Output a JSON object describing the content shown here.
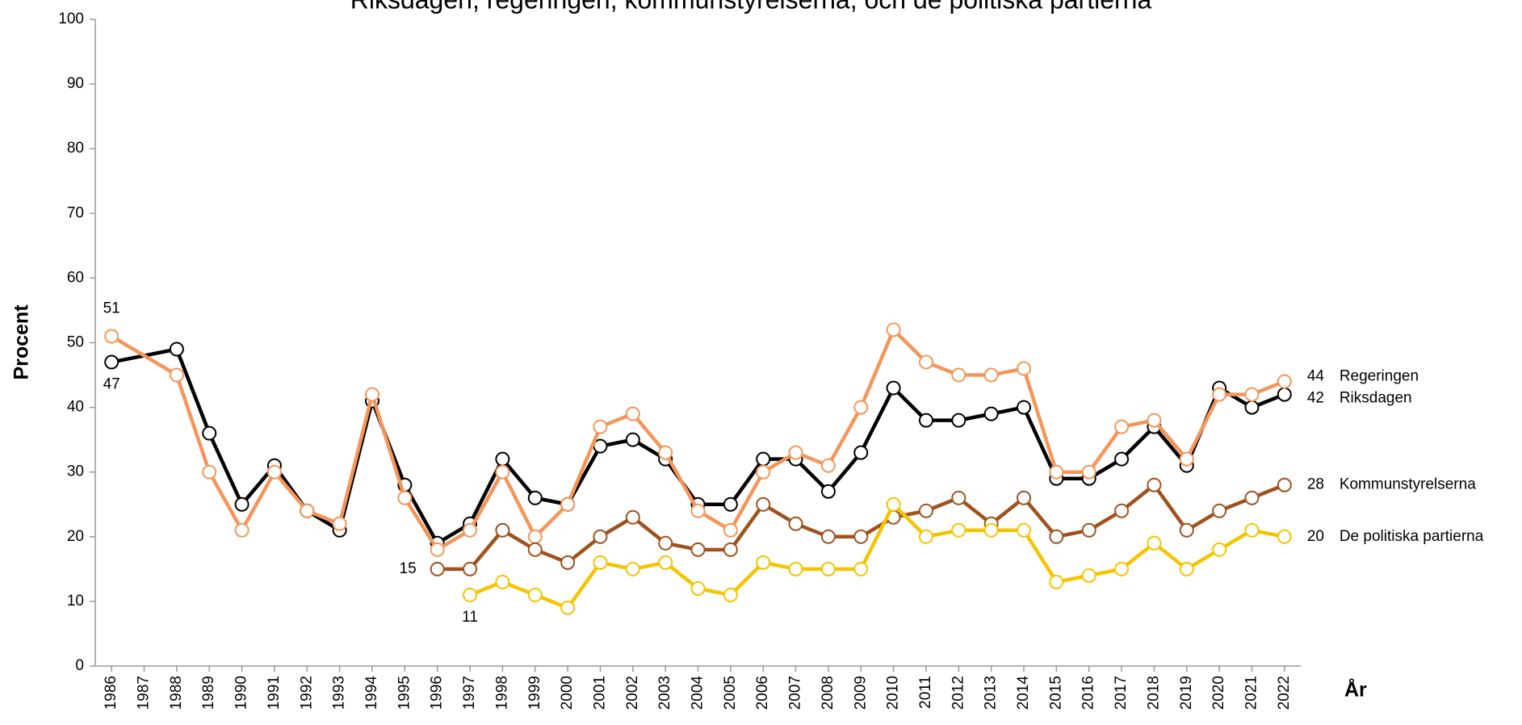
{
  "chart_data": {
    "type": "line",
    "title": "Riksdagen, regeringen, kommunstyrelserna, och de politiska partierna",
    "y_label": "Procent",
    "x_label": "År",
    "xlim": [
      1985.5,
      2022.5
    ],
    "xticks": [
      1986,
      1987,
      1988,
      1989,
      1990,
      1991,
      1992,
      1993,
      1994,
      1995,
      1996,
      1997,
      1998,
      1999,
      2000,
      2001,
      2002,
      2003,
      2004,
      2005,
      2006,
      2007,
      2008,
      2009,
      2010,
      2011,
      2012,
      2013,
      2014,
      2015,
      2016,
      2017,
      2018,
      2019,
      2020,
      2021,
      2022
    ],
    "ylim": [
      0,
      100
    ],
    "yticks": [
      0,
      10,
      20,
      30,
      40,
      50,
      60,
      70,
      80,
      90,
      100
    ],
    "series": [
      {
        "name": "Riksdagen",
        "color": "#000000",
        "x": [
          1986,
          1988,
          1989,
          1990,
          1991,
          1992,
          1993,
          1994,
          1995,
          1996,
          1997,
          1998,
          1999,
          2000,
          2001,
          2002,
          2003,
          2004,
          2005,
          2006,
          2007,
          2008,
          2009,
          2010,
          2011,
          2012,
          2013,
          2014,
          2015,
          2016,
          2017,
          2018,
          2019,
          2020,
          2021,
          2022
        ],
        "values": [
          47,
          49,
          36,
          25,
          31,
          24,
          21,
          41,
          28,
          19,
          22,
          32,
          26,
          25,
          34,
          35,
          32,
          25,
          25,
          32,
          32,
          27,
          33,
          43,
          38,
          38,
          39,
          40,
          29,
          29,
          32,
          37,
          31,
          43,
          40,
          42
        ]
      },
      {
        "name": "Regeringen",
        "color": "#f4965a",
        "x": [
          1986,
          1988,
          1989,
          1990,
          1991,
          1992,
          1993,
          1994,
          1995,
          1996,
          1997,
          1998,
          1999,
          2000,
          2001,
          2002,
          2003,
          2004,
          2005,
          2006,
          2007,
          2008,
          2009,
          2010,
          2011,
          2012,
          2013,
          2014,
          2015,
          2016,
          2017,
          2018,
          2019,
          2020,
          2021,
          2022
        ],
        "values": [
          51,
          45,
          30,
          21,
          30,
          24,
          22,
          42,
          26,
          18,
          21,
          30,
          20,
          25,
          37,
          39,
          33,
          24,
          21,
          30,
          33,
          31,
          40,
          52,
          47,
          45,
          45,
          46,
          30,
          30,
          37,
          38,
          32,
          42,
          42,
          44
        ]
      },
      {
        "name": "Kommunstyrelserna",
        "color": "#a0521e",
        "x": [
          1996,
          1997,
          1998,
          1999,
          2000,
          2001,
          2002,
          2003,
          2004,
          2005,
          2006,
          2007,
          2008,
          2009,
          2010,
          2011,
          2012,
          2013,
          2014,
          2015,
          2016,
          2017,
          2018,
          2019,
          2020,
          2021,
          2022
        ],
        "values": [
          15,
          15,
          21,
          18,
          16,
          20,
          23,
          19,
          18,
          18,
          25,
          22,
          20,
          20,
          23,
          24,
          26,
          22,
          26,
          20,
          21,
          24,
          28,
          21,
          24,
          26,
          28
        ]
      },
      {
        "name": "De politiska partierna",
        "color": "#f5c400",
        "x": [
          1997,
          1998,
          1999,
          2000,
          2001,
          2002,
          2003,
          2004,
          2005,
          2006,
          2007,
          2008,
          2009,
          2010,
          2011,
          2012,
          2013,
          2014,
          2015,
          2016,
          2017,
          2018,
          2019,
          2020,
          2021,
          2022
        ],
        "values": [
          11,
          13,
          11,
          9,
          16,
          15,
          16,
          12,
          11,
          16,
          15,
          15,
          15,
          25,
          20,
          21,
          21,
          21,
          13,
          14,
          15,
          19,
          15,
          18,
          21,
          20
        ]
      }
    ]
  }
}
